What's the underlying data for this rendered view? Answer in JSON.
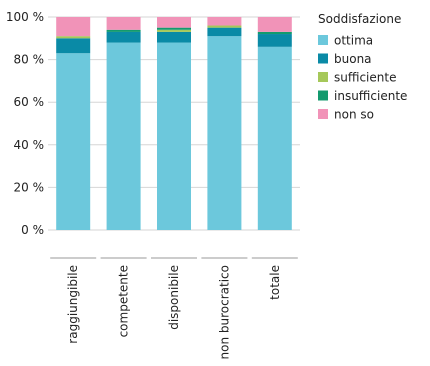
{
  "chart_data": {
    "type": "bar",
    "stacked": true,
    "categories": [
      "raggiungibile",
      "competente",
      "disponibile",
      "non burocratico",
      "totale"
    ],
    "series": [
      {
        "name": "ottima",
        "color": "#6cc8dc",
        "values": [
          83,
          88,
          88,
          91,
          86
        ]
      },
      {
        "name": "buona",
        "color": "#0a8aa6",
        "values": [
          7,
          5,
          5,
          4,
          6
        ]
      },
      {
        "name": "sufficiente",
        "color": "#a6c85a",
        "values": [
          1,
          0,
          1,
          1,
          0
        ]
      },
      {
        "name": "insufficiente",
        "color": "#139a6e",
        "values": [
          0,
          1,
          1,
          0,
          1
        ]
      },
      {
        "name": "non so",
        "color": "#f193b8",
        "values": [
          9,
          6,
          5,
          4,
          7
        ]
      }
    ],
    "ylim": [
      0,
      100
    ],
    "yticks": [
      "0 %",
      "20 %",
      "40 %",
      "60 %",
      "80 %",
      "100 %"
    ],
    "legend_title": "Soddisfazione",
    "legend_position": "right",
    "grid": "horizontal"
  }
}
